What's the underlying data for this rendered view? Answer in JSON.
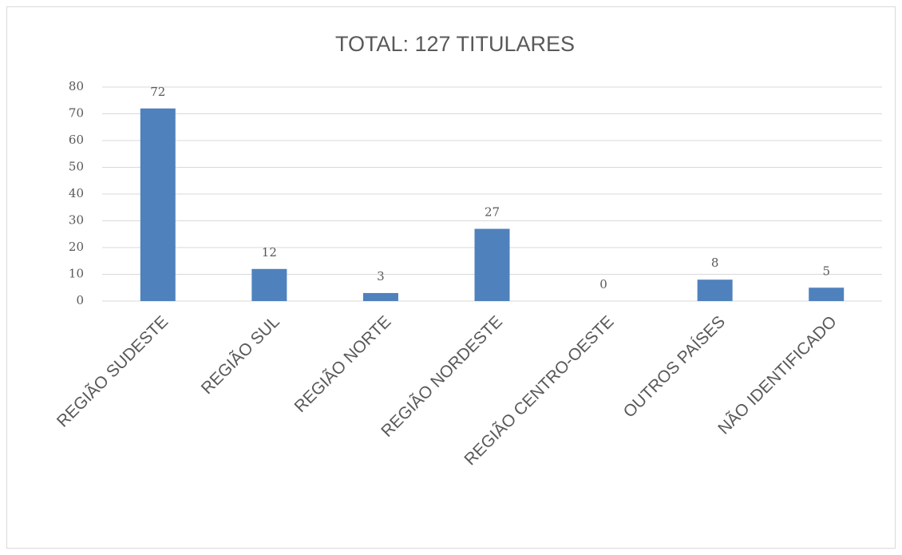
{
  "chart_data": {
    "type": "bar",
    "title": "TOTAL: 127 TITULARES",
    "categories": [
      "REGIÃO SUDESTE",
      "REGIÃO SUL",
      "REGIÃO NORTE",
      "REGIÃO NORDESTE",
      "REGIÃO CENTRO-OESTE",
      "OUTROS PAÍSES",
      "NÃO IDENTIFICADO"
    ],
    "values": [
      72,
      12,
      3,
      27,
      0,
      8,
      5
    ],
    "color": "#4f81bd",
    "ylim": [
      0,
      80
    ],
    "yticks": [
      0,
      10,
      20,
      30,
      40,
      50,
      60,
      70,
      80
    ],
    "grid": true
  }
}
